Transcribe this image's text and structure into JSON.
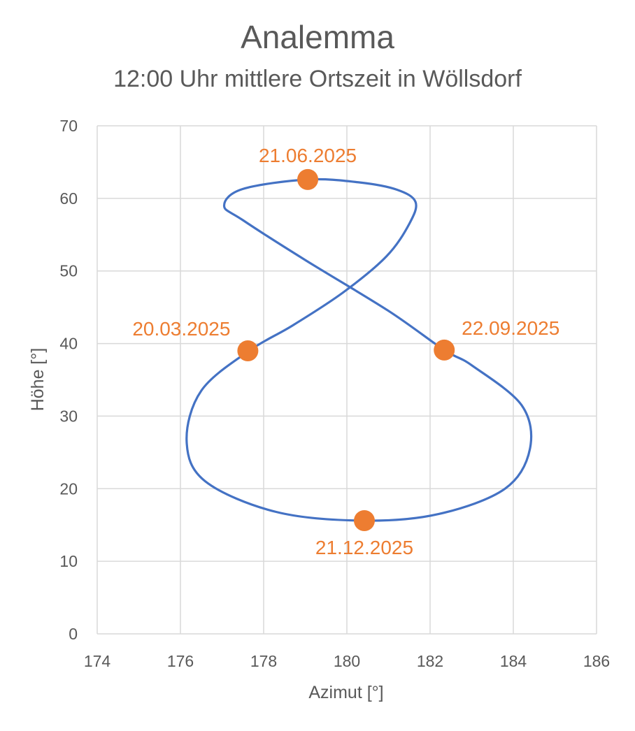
{
  "chart_data": {
    "type": "scatter",
    "title": "Analemma",
    "subtitle": "12:00 Uhr mittlere Ortszeit in Wöllsdorf",
    "xlabel": "Azimut [°]",
    "ylabel": "Höhe [°]",
    "xlim": [
      174,
      186
    ],
    "ylim": [
      0,
      70
    ],
    "xticks": [
      174,
      176,
      178,
      180,
      182,
      184,
      186
    ],
    "yticks": [
      0,
      10,
      20,
      30,
      40,
      50,
      60,
      70
    ],
    "grid": true,
    "series": [
      {
        "kind": "line",
        "color": "#4472C4",
        "x": [
          179.06,
          180.3,
          181.2,
          181.65,
          181.5,
          180.95,
          179.9,
          178.7,
          177.65,
          176.5,
          176.15,
          176.6,
          178.3,
          180.4,
          182.2,
          183.8,
          184.4,
          184.2,
          183.0,
          182.34,
          181.0,
          179.0,
          177.5,
          177.05,
          177.5,
          179.06
        ],
        "y": [
          62.6,
          62.2,
          61.2,
          59.5,
          56.5,
          52.0,
          47.0,
          42.5,
          39.0,
          33.5,
          26.5,
          21.0,
          16.8,
          15.6,
          16.5,
          20.0,
          25.5,
          31.5,
          37.0,
          39.1,
          44.5,
          51.5,
          57.0,
          59.0,
          61.3,
          62.6
        ]
      },
      {
        "kind": "markers",
        "color": "#ED7D31",
        "points": [
          {
            "x": 179.06,
            "y": 62.6,
            "label": "21.06.2025"
          },
          {
            "x": 177.62,
            "y": 39.0,
            "label": "20.03.2025"
          },
          {
            "x": 182.34,
            "y": 39.1,
            "label": "22.09.2025"
          },
          {
            "x": 180.42,
            "y": 15.6,
            "label": "21.12.2025"
          }
        ]
      }
    ]
  }
}
